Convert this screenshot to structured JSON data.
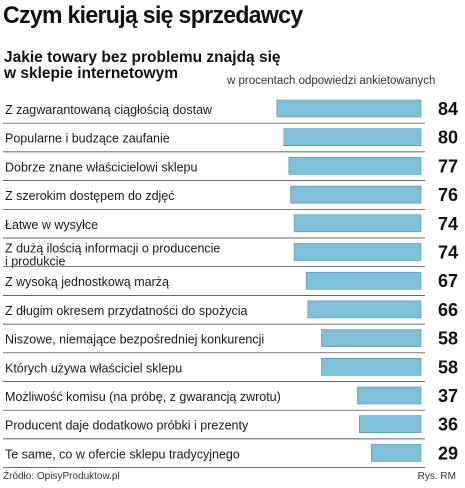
{
  "header": {
    "title": "Czym kierują się sprzedawcy",
    "subtitle_line1": "Jakie towary bez problemu znajdą się",
    "subtitle_line2": "w sklepie internetowym",
    "unit_note": "w procentach odpowiedzi ankietowanych"
  },
  "footer": {
    "source": "Źródło: OpisyProduktow.pl",
    "credit": "Rys. RM"
  },
  "colors": {
    "bar_fill": "#7fbfd8",
    "bar_stroke": "#4d8fae",
    "rule": "#333333"
  },
  "chart_data": {
    "type": "bar",
    "orientation": "horizontal",
    "title": "Czym kierują się sprzedawcy",
    "subtitle": "Jakie towary bez problemu znajdą się w sklepie internetowym",
    "unit": "w procentach odpowiedzi ankietowanych",
    "xlim": [
      0,
      84
    ],
    "categories": [
      [
        "Z zagwarantowaną ciągłością dostaw"
      ],
      [
        "Popularne i budzące zaufanie"
      ],
      [
        "Dobrze znane właścicielowi sklepu"
      ],
      [
        "Z szerokim dostępem do zdjęć"
      ],
      [
        "Łatwe w wysyłce"
      ],
      [
        "Z dużą ilością informacji o producencie",
        "i produkcie"
      ],
      [
        "Z wysoką jednostkową marżą"
      ],
      [
        "Z długim okresem przydatności do spożycia"
      ],
      [
        "Niszowe, niemające bezpośredniej konkurencji"
      ],
      [
        "Których używa właściciel sklepu"
      ],
      [
        "Możliwość komisu (na próbę, z gwarancją zwrotu)"
      ],
      [
        "Producent daje dodatkowo próbki i prezenty"
      ],
      [
        "Te same, co w ofercie sklepu tradycyjnego"
      ]
    ],
    "values": [
      84,
      80,
      77,
      76,
      74,
      74,
      67,
      66,
      58,
      58,
      37,
      36,
      29
    ]
  }
}
